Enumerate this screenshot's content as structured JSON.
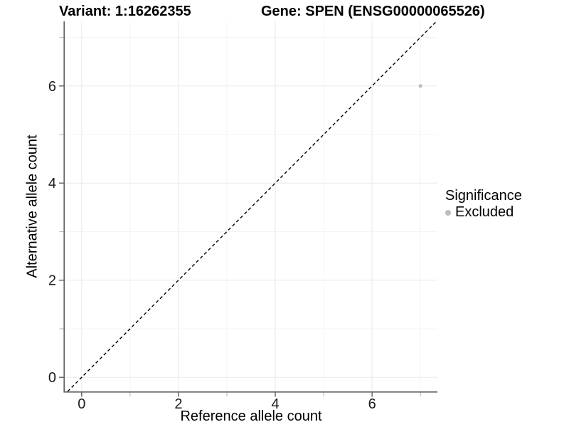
{
  "titles": {
    "variant": "Variant: 1:16262355",
    "gene": "Gene: SPEN (ENSG00000065526)"
  },
  "chart_data": {
    "type": "scatter",
    "title_left": "Variant: 1:16262355",
    "title_right": "Gene: SPEN (ENSG00000065526)",
    "xlabel": "Reference allele count",
    "ylabel": "Alternative allele count",
    "xlim": [
      -0.35,
      7.35
    ],
    "ylim": [
      -0.29,
      7.33
    ],
    "x_major_ticks": [
      0,
      2,
      4,
      6
    ],
    "x_minor_ticks": [
      1,
      3,
      5,
      7
    ],
    "y_major_ticks": [
      0,
      2,
      4,
      6
    ],
    "y_minor_ticks": [
      1,
      3,
      5,
      7
    ],
    "x_tick_labels": [
      "0",
      "2",
      "4",
      "6"
    ],
    "y_tick_labels": [
      "0",
      "2",
      "4",
      "6"
    ],
    "grid": true,
    "points": [
      {
        "x": 7,
        "y": 6,
        "significance": "Excluded"
      }
    ],
    "identity_line": {
      "equation": "y = x",
      "style": "dashed"
    },
    "legend": {
      "title": "Significance",
      "position": "right",
      "entries": [
        {
          "label": "Excluded",
          "color": "#bdbdbd"
        }
      ]
    }
  },
  "colors": {
    "background": "#ffffff",
    "point": "#bdbdbd",
    "grid_major": "#e9e9e9",
    "grid_minor": "#f4f4f4",
    "axis_line": "#5f5f5f",
    "major_tick": "#5f5f5f",
    "minor_tick": "#bcbcbc",
    "tick_text": "#1a1a1a",
    "identity_line": "#000000",
    "title_text": "#000000"
  }
}
